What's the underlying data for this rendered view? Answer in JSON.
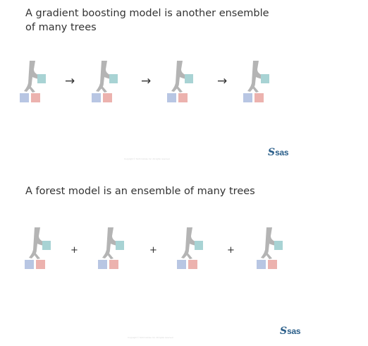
{
  "top_panel": {
    "title": "A gradient boosting model is another ensemble of many trees",
    "operator_glyph": "→",
    "operator_icon": "arrow-right-icon",
    "footnote": "Copyright © SAS Institute Inc. All rights reserved.",
    "logo": {
      "mark": "S",
      "text": "sas"
    }
  },
  "bottom_panel": {
    "title": "A forest model is an ensemble of many trees",
    "operator_glyph": "+",
    "operator_icon": "plus-icon",
    "footnote": "Copyright © SAS Institute Inc. All rights reserved.",
    "logo": {
      "mark": "S",
      "text": "sas"
    }
  },
  "tree_icon": {
    "icon": "decision-tree-icon",
    "colors": {
      "trunk": "#b4b4b4",
      "leaf_top_right": "#a8d3d4",
      "leaf_bottom_left": "#b8c6e3",
      "leaf_bottom_right": "#ecb2ae"
    }
  },
  "colors": {
    "logo": "#2b5f8a",
    "title": "#333333"
  }
}
